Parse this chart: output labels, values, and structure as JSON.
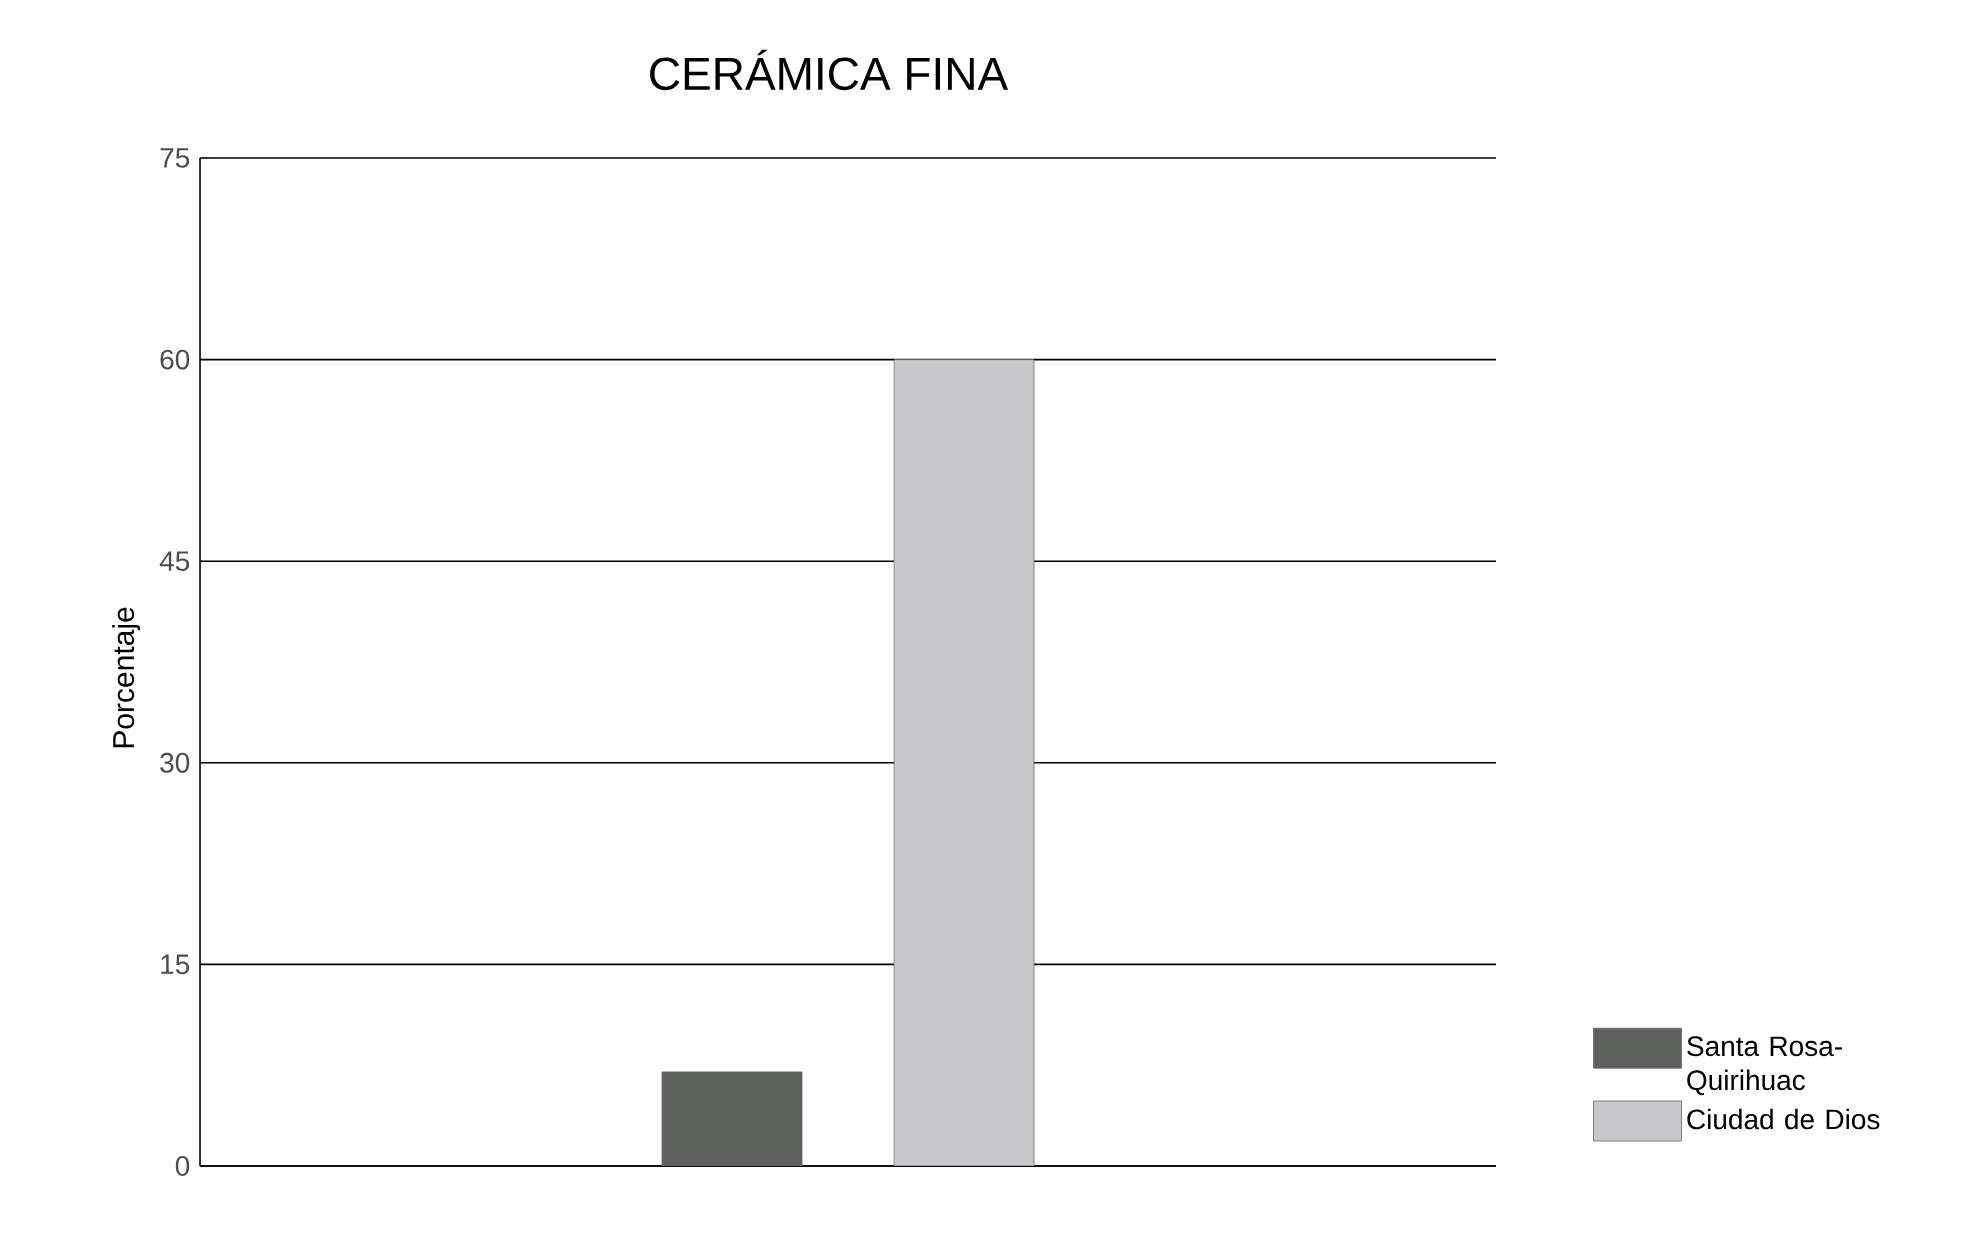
{
  "chart_data": {
    "type": "bar",
    "title": "CERÁMICA FINA",
    "ylabel": "Porcentaje",
    "categories": [
      null
    ],
    "series": [
      {
        "name": "Santa Rosa-Quirihuac",
        "color": "#5f615f",
        "values": [
          7
        ]
      },
      {
        "name": "Ciudad de Dios",
        "color": "#c8c8cc",
        "values": [
          60
        ]
      }
    ],
    "ylim": [
      0,
      75
    ],
    "yticks": [
      0,
      15,
      30,
      45,
      60,
      75
    ],
    "grid": "y",
    "legend": "right"
  }
}
